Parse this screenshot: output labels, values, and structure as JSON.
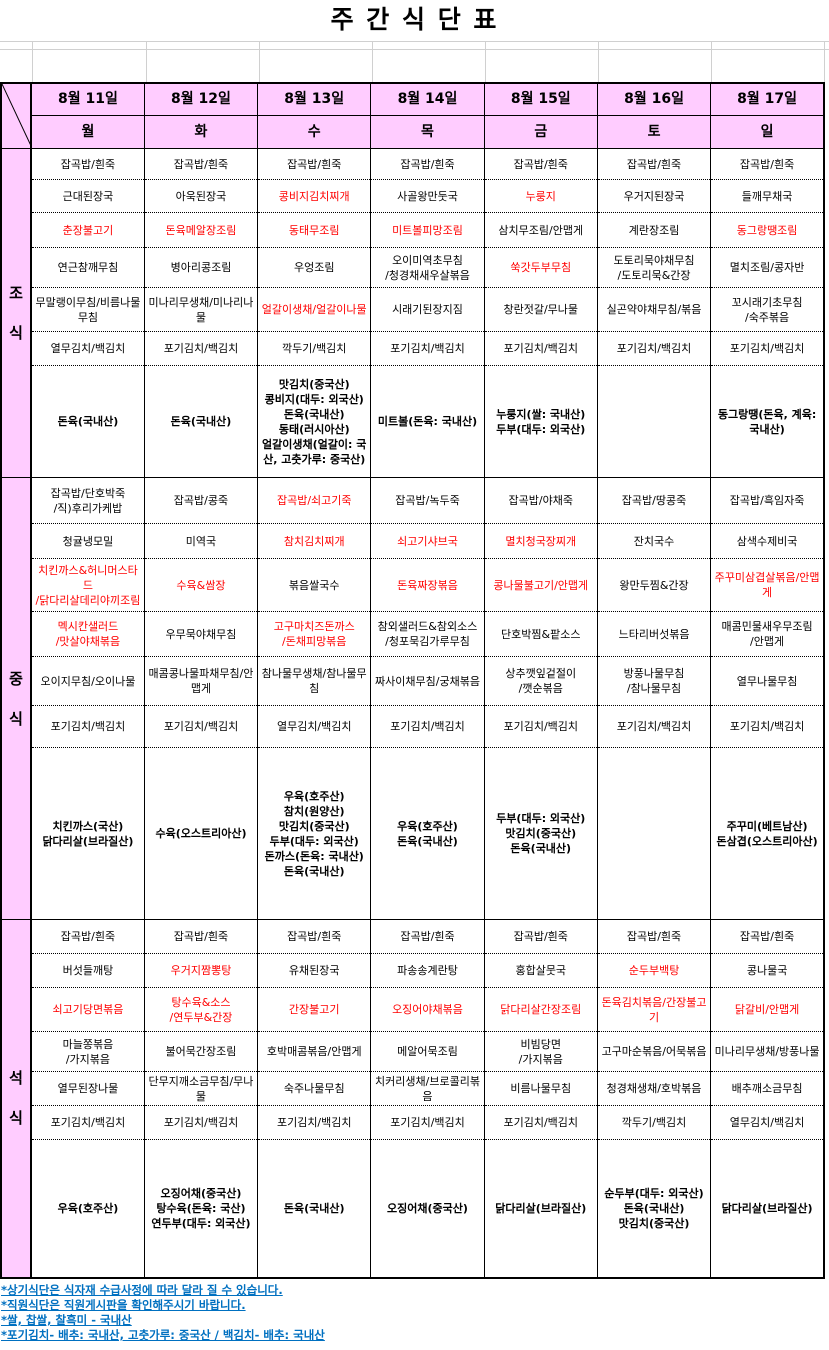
{
  "title": "주 간 식 단 표",
  "days": [
    {
      "date": "8월 11일",
      "weekday": "월"
    },
    {
      "date": "8월 12일",
      "weekday": "화"
    },
    {
      "date": "8월 13일",
      "weekday": "수"
    },
    {
      "date": "8월 14일",
      "weekday": "목"
    },
    {
      "date": "8월 15일",
      "weekday": "금"
    },
    {
      "date": "8월 16일",
      "weekday": "토"
    },
    {
      "date": "8월 17일",
      "weekday": "일"
    }
  ],
  "colors": {
    "header_bg": "#ffccff",
    "highlight_text": "#ff0000",
    "note_text": "#0070c0"
  },
  "meals": [
    {
      "label": "조\n식",
      "rows": [
        [
          "잡곡밥/흰죽",
          "잡곡밥/흰죽",
          "잡곡밥/흰죽",
          "잡곡밥/흰죽",
          "잡곡밥/흰죽",
          "잡곡밥/흰죽",
          "잡곡밥/흰죽"
        ],
        [
          "근대된장국",
          "아욱된장국",
          {
            "t": "콩비지김치찌개",
            "red": true
          },
          "사골왕만둣국",
          {
            "t": "누룽지",
            "red": true
          },
          "우거지된장국",
          "들깨무채국"
        ],
        [
          {
            "t": "춘장불고기",
            "red": true
          },
          {
            "t": "돈육메알장조림",
            "red": true
          },
          {
            "t": "동태무조림",
            "red": true
          },
          {
            "t": "미트볼피망조림",
            "red": true
          },
          "삼치무조림/안맵게",
          "계란장조림",
          {
            "t": "동그랑땡조림",
            "red": true
          }
        ],
        [
          "연근참깨무침",
          "병아리콩조림",
          "우엉조림",
          "오이미역초무침\n/청경채새우살볶음",
          {
            "t": "쑥갓두부무침",
            "red": true
          },
          "도토리묵야채무침\n/도토리묵&간장",
          "멸치조림/콩자반"
        ],
        [
          "무말랭이무침/비름나물무침",
          "미나리무생채/미나리나물",
          {
            "t": "얼갈이생채/얼갈이나물",
            "red": true
          },
          "시래기된장지짐",
          "창란젓갈/무나물",
          "실곤약야채무침/볶음",
          "꼬시래기초무침\n/숙주볶음"
        ],
        [
          "열무김치/백김치",
          "포기김치/백김치",
          "깍두기/백김치",
          "포기김치/백김치",
          "포기김치/백김치",
          "포기김치/백김치",
          "포기김치/백김치"
        ]
      ],
      "origins": [
        "돈육(국내산)",
        "돈육(국내산)",
        "맛김치(중국산)\n콩비지(대두: 외국산)\n돈육(국내산)\n동태(러시아산)\n얼갈이생채(얼갈이: 국산, 고춧가루: 중국산)",
        "미트볼(돈육: 국내산)",
        "누룽지(쌀: 국내산)\n두부(대두: 외국산)",
        "",
        "동그랑땡(돈육, 계육: 국내산)"
      ]
    },
    {
      "label": "중\n식",
      "rows": [
        [
          "잡곡밥/단호박죽\n/직)후리가케밥",
          "잡곡밥/콩죽",
          {
            "t": "잡곡밥/쇠고기죽",
            "red": true
          },
          "잡곡밥/녹두죽",
          "잡곡밥/야채죽",
          "잡곡밥/땅콩죽",
          "잡곡밥/흑임자죽"
        ],
        [
          "청귤냉모밀",
          "미역국",
          {
            "t": "참치김치찌개",
            "red": true
          },
          {
            "t": "쇠고기샤브국",
            "red": true
          },
          {
            "t": "멸치청국장찌개",
            "red": true
          },
          "잔치국수",
          "삼색수제비국"
        ],
        [
          {
            "t": "치킨까스&허니머스타드\n/닭다리살데리야끼조림",
            "red": true
          },
          {
            "t": "수육&쌈장",
            "red": true
          },
          "볶음쌀국수",
          {
            "t": "돈육짜장볶음",
            "red": true
          },
          {
            "t": "콩나물불고기/안맵게",
            "red": true
          },
          "왕만두찜&간장",
          {
            "t": "주꾸미삼겹살볶음/안맵게",
            "red": true
          }
        ],
        [
          {
            "t": "멕시칸샐러드\n/맛살야채볶음",
            "red": true
          },
          "우무묵야채무침",
          {
            "t": "고구마치즈돈까스\n/돈채피망볶음",
            "red": true
          },
          "참외샐러드&참외소스\n/청포묵김가루무침",
          "단호박찜&팥소스",
          "느타리버섯볶음",
          "매콤민물새우무조림\n/안맵게"
        ],
        [
          "오이지무침/오이나물",
          "매콤콩나물파채무침/안맵게",
          "참나물무생채/참나물무침",
          "짜사이채무침/궁채볶음",
          "상추깻잎겉절이\n/깻순볶음",
          "방풍나물무침\n/참나물무침",
          "열무나물무침"
        ],
        [
          "포기김치/백김치",
          "포기김치/백김치",
          "열무김치/백김치",
          "포기김치/백김치",
          "포기김치/백김치",
          "포기김치/백김치",
          "포기김치/백김치"
        ]
      ],
      "origins": [
        "치킨까스(국산)\n닭다리살(브라질산)",
        "수육(오스트리아산)",
        "우육(호주산)\n참치(원양산)\n맛김치(중국산)\n두부(대두: 외국산)\n돈까스(돈육: 국내산)\n돈육(국내산)",
        "우육(호주산)\n돈육(국내산)",
        "두부(대두: 외국산)\n맛김치(중국산)\n돈육(국내산)",
        "",
        "주꾸미(베트남산)\n돈삼겹(오스트리아산)"
      ]
    },
    {
      "label": "석\n식",
      "rows": [
        [
          "잡곡밥/흰죽",
          "잡곡밥/흰죽",
          "잡곡밥/흰죽",
          "잡곡밥/흰죽",
          "잡곡밥/흰죽",
          "잡곡밥/흰죽",
          "잡곡밥/흰죽"
        ],
        [
          "버섯들깨탕",
          {
            "t": "우거지짬뽕탕",
            "red": true
          },
          "유채된장국",
          "파송송계란탕",
          "홍합살뭇국",
          {
            "t": "순두부백탕",
            "red": true
          },
          "콩나물국"
        ],
        [
          {
            "t": "쇠고기당면볶음",
            "red": true
          },
          {
            "t": "탕수육&소스\n/연두부&간장",
            "red": true
          },
          {
            "t": "간장불고기",
            "red": true
          },
          {
            "t": "오징어야채볶음",
            "red": true
          },
          {
            "t": "닭다리살간장조림",
            "red": true
          },
          {
            "t": "돈육김치볶음/간장불고기",
            "red": true
          },
          {
            "t": "닭갈비/안맵게",
            "red": true
          }
        ],
        [
          "마늘쫑볶음\n/가지볶음",
          "불어묵간장조림",
          "호박매콤볶음/안맵게",
          "메알어묵조림",
          "비빔당면\n/가지볶음",
          "고구마순볶음/어묵볶음",
          "미나리무생채/방풍나물"
        ],
        [
          "열무된장나물",
          "단무지깨소금무침/무나물",
          "숙주나물무침",
          "치커리생채/브로콜리볶음",
          "비름나물무침",
          "청경채생채/호박볶음",
          "배추깨소금무침"
        ],
        [
          "포기김치/백김치",
          "포기김치/백김치",
          "포기김치/백김치",
          "포기김치/백김치",
          "포기김치/백김치",
          "깍두기/백김치",
          "열무김치/백김치"
        ]
      ],
      "origins": [
        "우육(호주산)",
        "오징어채(중국산)\n탕수육(돈육: 국산)\n연두부(대두: 외국산)",
        "돈육(국내산)",
        "오징어채(중국산)",
        "닭다리살(브라질산)",
        "순두부(대두: 외국산)\n돈육(국내산)\n맛김치(중국산)",
        "닭다리살(브라질산)"
      ]
    }
  ],
  "notes": [
    "*상기식단은 식자재 수급사정에 따라 달라 질 수 있습니다.",
    "*직원식단은 직원게시판을 확인해주시기 바랍니다.",
    "*쌀, 찹쌀, 찰흑미 - 국내산",
    "*포기김치- 배추: 국내산, 고춧가루: 중국산 / 백김치- 배추: 국내산"
  ]
}
